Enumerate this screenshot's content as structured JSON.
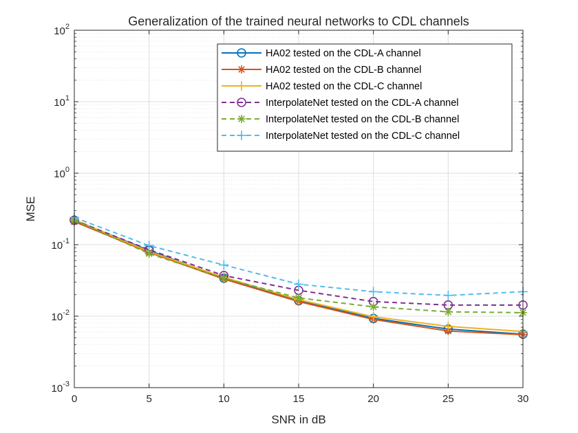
{
  "chart_data": {
    "type": "line",
    "title": "Generalization of the trained neural networks to CDL channels",
    "xlabel": "SNR in dB",
    "ylabel": "MSE",
    "yscale": "log",
    "xlim": [
      0,
      30
    ],
    "ylim": [
      0.001,
      100
    ],
    "x": [
      0,
      5,
      10,
      15,
      20,
      25,
      30
    ],
    "x_tick_labels": [
      "0",
      "5",
      "10",
      "15",
      "20",
      "25",
      "30"
    ],
    "y_tick_labels": [
      {
        "base": "10",
        "exp": "-3"
      },
      {
        "base": "10",
        "exp": "-2"
      },
      {
        "base": "10",
        "exp": "-1"
      },
      {
        "base": "10",
        "exp": "0"
      },
      {
        "base": "10",
        "exp": "1"
      },
      {
        "base": "10",
        "exp": "2"
      }
    ],
    "grid": true,
    "legend_position": "top-right",
    "series": [
      {
        "name": "HA02 tested on the CDL-A channel",
        "color": "#0072BD",
        "dash": "solid",
        "marker": "circle",
        "values": [
          0.22,
          0.083,
          0.034,
          0.0165,
          0.0093,
          0.0066,
          0.0056
        ]
      },
      {
        "name": "HA02 tested on the CDL-B channel",
        "color": "#D95319",
        "dash": "solid",
        "marker": "asterisk",
        "values": [
          0.21,
          0.078,
          0.033,
          0.016,
          0.009,
          0.0062,
          0.0055
        ]
      },
      {
        "name": "HA02 tested on the CDL-C channel",
        "color": "#EDB120",
        "dash": "solid",
        "marker": "plus",
        "values": [
          0.225,
          0.08,
          0.035,
          0.017,
          0.0098,
          0.0072,
          0.0061
        ]
      },
      {
        "name": "InterpolateNet tested on the CDL-A channel",
        "color": "#7E2F8E",
        "dash": "dashed",
        "marker": "circle",
        "values": [
          0.22,
          0.085,
          0.037,
          0.023,
          0.016,
          0.0143,
          0.0143
        ]
      },
      {
        "name": "InterpolateNet tested on the CDL-B channel",
        "color": "#77AC30",
        "dash": "dashed",
        "marker": "asterisk",
        "values": [
          0.22,
          0.075,
          0.034,
          0.018,
          0.0135,
          0.0115,
          0.0112
        ]
      },
      {
        "name": "InterpolateNet tested on the CDL-C channel",
        "color": "#4DBEEE",
        "dash": "dashed",
        "marker": "plus",
        "values": [
          0.24,
          0.097,
          0.052,
          0.028,
          0.022,
          0.0195,
          0.022
        ]
      }
    ]
  }
}
